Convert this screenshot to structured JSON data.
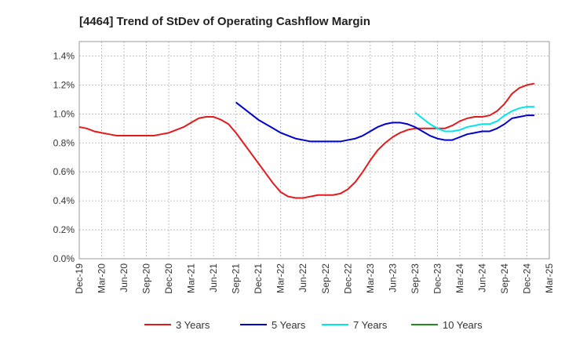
{
  "chart_data": {
    "type": "line",
    "title": "[4464]  Trend of StDev of Operating Cashflow Margin",
    "xlabel": "",
    "ylabel": "",
    "ylim": [
      0,
      0.015
    ],
    "y_ticks": [
      0,
      0.002,
      0.004,
      0.006,
      0.008,
      0.01,
      0.012,
      0.014
    ],
    "y_tick_labels": [
      "0.0%",
      "0.2%",
      "0.4%",
      "0.6%",
      "0.8%",
      "1.0%",
      "1.2%",
      "1.4%"
    ],
    "x_range": [
      "2019-12",
      "2025-03"
    ],
    "x_tick_labels": [
      "Dec-19",
      "Mar-20",
      "Jun-20",
      "Sep-20",
      "Dec-20",
      "Mar-21",
      "Jun-21",
      "Sep-21",
      "Dec-21",
      "Mar-22",
      "Jun-22",
      "Sep-22",
      "Dec-22",
      "Mar-23",
      "Jun-23",
      "Sep-23",
      "Dec-23",
      "Mar-24",
      "Jun-24",
      "Sep-24",
      "Dec-24",
      "Mar-25"
    ],
    "grid": true,
    "legend_position": "bottom",
    "series": [
      {
        "name": "3 Years",
        "color": "#e31a1c",
        "points": [
          [
            "2019-12",
            0.0091
          ],
          [
            "2020-01",
            0.009
          ],
          [
            "2020-02",
            0.0088
          ],
          [
            "2020-03",
            0.0087
          ],
          [
            "2020-04",
            0.0086
          ],
          [
            "2020-05",
            0.0085
          ],
          [
            "2020-06",
            0.0085
          ],
          [
            "2020-07",
            0.0085
          ],
          [
            "2020-08",
            0.0085
          ],
          [
            "2020-09",
            0.0085
          ],
          [
            "2020-10",
            0.0085
          ],
          [
            "2020-11",
            0.0086
          ],
          [
            "2020-12",
            0.0087
          ],
          [
            "2021-01",
            0.0089
          ],
          [
            "2021-02",
            0.0091
          ],
          [
            "2021-03",
            0.0094
          ],
          [
            "2021-04",
            0.0097
          ],
          [
            "2021-05",
            0.0098
          ],
          [
            "2021-06",
            0.0098
          ],
          [
            "2021-07",
            0.0096
          ],
          [
            "2021-08",
            0.0093
          ],
          [
            "2021-09",
            0.0087
          ],
          [
            "2021-10",
            0.008
          ],
          [
            "2021-11",
            0.0073
          ],
          [
            "2021-12",
            0.0066
          ],
          [
            "2022-01",
            0.0059
          ],
          [
            "2022-02",
            0.0052
          ],
          [
            "2022-03",
            0.0046
          ],
          [
            "2022-04",
            0.0043
          ],
          [
            "2022-05",
            0.0042
          ],
          [
            "2022-06",
            0.0042
          ],
          [
            "2022-07",
            0.0043
          ],
          [
            "2022-08",
            0.0044
          ],
          [
            "2022-09",
            0.0044
          ],
          [
            "2022-10",
            0.0044
          ],
          [
            "2022-11",
            0.0045
          ],
          [
            "2022-12",
            0.0048
          ],
          [
            "2023-01",
            0.0053
          ],
          [
            "2023-02",
            0.006
          ],
          [
            "2023-03",
            0.0068
          ],
          [
            "2023-04",
            0.0075
          ],
          [
            "2023-05",
            0.008
          ],
          [
            "2023-06",
            0.0084
          ],
          [
            "2023-07",
            0.0087
          ],
          [
            "2023-08",
            0.0089
          ],
          [
            "2023-09",
            0.009
          ],
          [
            "2023-10",
            0.009
          ],
          [
            "2023-11",
            0.009
          ],
          [
            "2023-12",
            0.009
          ],
          [
            "2024-01",
            0.009
          ],
          [
            "2024-02",
            0.0092
          ],
          [
            "2024-03",
            0.0095
          ],
          [
            "2024-04",
            0.0097
          ],
          [
            "2024-05",
            0.0098
          ],
          [
            "2024-06",
            0.0098
          ],
          [
            "2024-07",
            0.0099
          ],
          [
            "2024-08",
            0.0102
          ],
          [
            "2024-09",
            0.0107
          ],
          [
            "2024-10",
            0.0114
          ],
          [
            "2024-11",
            0.0118
          ],
          [
            "2024-12",
            0.012
          ],
          [
            "2025-01",
            0.0121
          ]
        ]
      },
      {
        "name": "5 Years",
        "color": "#0000cc",
        "points": [
          [
            "2021-09",
            0.0108
          ],
          [
            "2021-10",
            0.0104
          ],
          [
            "2021-11",
            0.01
          ],
          [
            "2021-12",
            0.0096
          ],
          [
            "2022-01",
            0.0093
          ],
          [
            "2022-02",
            0.009
          ],
          [
            "2022-03",
            0.0087
          ],
          [
            "2022-04",
            0.0085
          ],
          [
            "2022-05",
            0.0083
          ],
          [
            "2022-06",
            0.0082
          ],
          [
            "2022-07",
            0.0081
          ],
          [
            "2022-08",
            0.0081
          ],
          [
            "2022-09",
            0.0081
          ],
          [
            "2022-10",
            0.0081
          ],
          [
            "2022-11",
            0.0081
          ],
          [
            "2022-12",
            0.0082
          ],
          [
            "2023-01",
            0.0083
          ],
          [
            "2023-02",
            0.0085
          ],
          [
            "2023-03",
            0.0088
          ],
          [
            "2023-04",
            0.0091
          ],
          [
            "2023-05",
            0.0093
          ],
          [
            "2023-06",
            0.0094
          ],
          [
            "2023-07",
            0.0094
          ],
          [
            "2023-08",
            0.0093
          ],
          [
            "2023-09",
            0.0091
          ],
          [
            "2023-10",
            0.0088
          ],
          [
            "2023-11",
            0.0085
          ],
          [
            "2023-12",
            0.0083
          ],
          [
            "2024-01",
            0.0082
          ],
          [
            "2024-02",
            0.0082
          ],
          [
            "2024-03",
            0.0084
          ],
          [
            "2024-04",
            0.0086
          ],
          [
            "2024-05",
            0.0087
          ],
          [
            "2024-06",
            0.0088
          ],
          [
            "2024-07",
            0.0088
          ],
          [
            "2024-08",
            0.009
          ],
          [
            "2024-09",
            0.0093
          ],
          [
            "2024-10",
            0.0097
          ],
          [
            "2024-11",
            0.0098
          ],
          [
            "2024-12",
            0.0099
          ],
          [
            "2025-01",
            0.0099
          ]
        ]
      },
      {
        "name": "7 Years",
        "color": "#00e5ee",
        "points": [
          [
            "2023-09",
            0.0101
          ],
          [
            "2023-10",
            0.0097
          ],
          [
            "2023-11",
            0.0093
          ],
          [
            "2023-12",
            0.009
          ],
          [
            "2024-01",
            0.0088
          ],
          [
            "2024-02",
            0.0088
          ],
          [
            "2024-03",
            0.0089
          ],
          [
            "2024-04",
            0.0091
          ],
          [
            "2024-05",
            0.0092
          ],
          [
            "2024-06",
            0.0093
          ],
          [
            "2024-07",
            0.0093
          ],
          [
            "2024-08",
            0.0095
          ],
          [
            "2024-09",
            0.0099
          ],
          [
            "2024-10",
            0.0102
          ],
          [
            "2024-11",
            0.0104
          ],
          [
            "2024-12",
            0.0105
          ],
          [
            "2025-01",
            0.0105
          ]
        ]
      },
      {
        "name": "10 Years",
        "color": "#228b22",
        "points": []
      }
    ]
  }
}
